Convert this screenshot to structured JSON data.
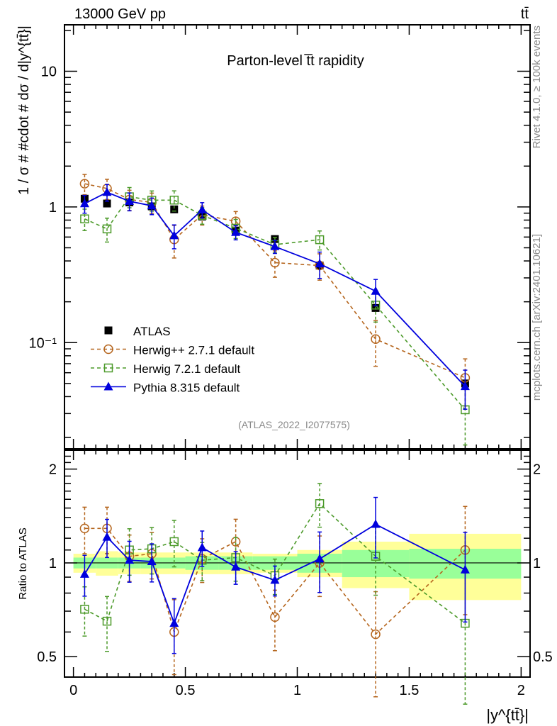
{
  "header": {
    "left": "13000 GeV pp",
    "right": "tt̄"
  },
  "side_text": {
    "upper": "Rivet 4.1.0, ≥ 100k events",
    "lower": "mcplots.cern.ch [arXiv:2401.10621]"
  },
  "chart_data": [
    {
      "type": "line",
      "panel": "main",
      "title": "Parton-level t̅t rapidity",
      "ylabel": "1 / σ # #cdot # dσ / d|y^{tt̄}|",
      "xlabel": "",
      "yscale": "log",
      "ylim": [
        0.0165,
        22
      ],
      "xlim": [
        -0.04,
        2.04
      ],
      "ytick_labels": [
        "10",
        "1",
        "10⁻¹"
      ],
      "ytick_values": [
        10,
        1,
        0.1
      ],
      "watermark": "(ATLAS_2022_I2077575)",
      "legend_position": "bottom-left",
      "x": [
        0.05,
        0.15,
        0.25,
        0.35,
        0.45,
        0.575,
        0.725,
        0.9,
        1.1,
        1.35,
        1.75
      ],
      "bin_edges": [
        0,
        0.1,
        0.2,
        0.3,
        0.4,
        0.5,
        0.65,
        0.8,
        1.0,
        1.2,
        1.5,
        2.0
      ],
      "series": [
        {
          "name": "ATLAS",
          "style": "data",
          "color": "#000000",
          "values": [
            1.15,
            1.06,
            1.08,
            1.01,
            0.96,
            0.85,
            0.67,
            0.58,
            0.37,
            0.18,
            0.05
          ]
        },
        {
          "name": "Herwig++ 2.7.1 default",
          "style": "circle-dashed",
          "color": "#b5651d",
          "ratio": [
            1.29,
            1.29,
            1.05,
            1.07,
            0.6,
            1.03,
            1.17,
            0.67,
            1.0,
            0.59,
            1.1
          ],
          "rel_err": [
            0.17,
            0.17,
            0.17,
            0.17,
            0.27,
            0.16,
            0.18,
            0.22,
            0.22,
            0.37,
            0.38
          ]
        },
        {
          "name": "Herwig 7.2.1 default",
          "style": "square-dashed",
          "color": "#4c9a2a",
          "ratio": [
            0.71,
            0.65,
            1.1,
            1.11,
            1.17,
            1.02,
            1.04,
            0.91,
            1.55,
            1.05,
            0.64
          ],
          "rel_err": [
            0.18,
            0.2,
            0.17,
            0.17,
            0.17,
            0.14,
            0.16,
            0.13,
            0.16,
            0.25,
            0.45
          ]
        },
        {
          "name": "Pythia 8.315 default",
          "style": "triangle-solid",
          "color": "#0000dd",
          "ratio": [
            0.92,
            1.21,
            1.02,
            1.01,
            0.64,
            1.12,
            0.97,
            0.88,
            1.03,
            1.33,
            0.95
          ],
          "rel_err": [
            0.15,
            0.14,
            0.15,
            0.14,
            0.2,
            0.13,
            0.12,
            0.11,
            0.22,
            0.22,
            0.32
          ]
        }
      ]
    },
    {
      "type": "line",
      "panel": "ratio",
      "ylabel": "Ratio to ATLAS",
      "xlabel": "|y^{tt̄}|",
      "yscale": "log",
      "ylim": [
        0.43,
        2.3
      ],
      "xlim": [
        -0.04,
        2.04
      ],
      "ytick_labels": [
        "2",
        "1",
        "0.5"
      ],
      "ytick_values": [
        2,
        1,
        0.5
      ],
      "xtick_labels": [
        "0",
        "0.5",
        "1",
        "1.5",
        "2"
      ],
      "xtick_values": [
        0,
        0.5,
        1,
        1.5,
        2
      ],
      "band_stat": [
        0.04,
        0.04,
        0.04,
        0.04,
        0.04,
        0.05,
        0.05,
        0.05,
        0.07,
        0.1,
        0.11
      ],
      "band_total": [
        0.07,
        0.09,
        0.08,
        0.08,
        0.08,
        0.08,
        0.08,
        0.07,
        0.1,
        0.17,
        0.24
      ]
    }
  ]
}
